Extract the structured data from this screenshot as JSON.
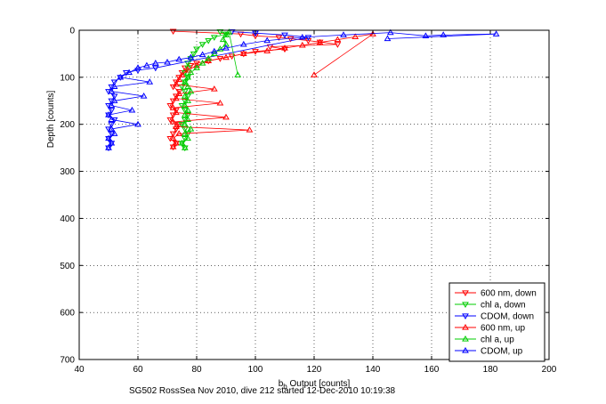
{
  "chart_data": {
    "type": "scatter",
    "caption": "SG502 RossSea Nov 2010, dive 212 started 12-Dec-2010 10:19:38",
    "xlabel": "b_b Output [counts]",
    "ylabel": "Depth [counts]",
    "xlim": [
      40,
      200
    ],
    "ylim": [
      0,
      700
    ],
    "y_reversed": true,
    "grid": "dotted",
    "legend_position": "bottom-right",
    "xticks": [
      "40",
      "60",
      "80",
      "100",
      "120",
      "140",
      "160",
      "180",
      "200"
    ],
    "yticks": [
      "0",
      "100",
      "200",
      "300",
      "400",
      "500",
      "600",
      "700"
    ],
    "series": [
      {
        "name": "600 nm, down",
        "color": "#ff0000",
        "marker": "triangle-down",
        "points": [
          [
            72,
            2
          ],
          [
            95,
            8
          ],
          [
            100,
            12
          ],
          [
            108,
            15
          ],
          [
            112,
            18
          ],
          [
            118,
            22
          ],
          [
            122,
            25
          ],
          [
            128,
            30
          ],
          [
            105,
            35
          ],
          [
            110,
            40
          ],
          [
            100,
            45
          ],
          [
            96,
            50
          ],
          [
            92,
            55
          ],
          [
            88,
            60
          ],
          [
            84,
            65
          ],
          [
            80,
            70
          ],
          [
            78,
            75
          ],
          [
            76,
            80
          ],
          [
            75,
            90
          ],
          [
            74,
            100
          ],
          [
            73,
            110
          ],
          [
            72,
            120
          ],
          [
            74,
            130
          ],
          [
            73,
            140
          ],
          [
            72,
            150
          ],
          [
            71,
            160
          ],
          [
            73,
            170
          ],
          [
            72,
            180
          ],
          [
            71,
            190
          ],
          [
            74,
            200
          ],
          [
            73,
            210
          ],
          [
            72,
            220
          ],
          [
            71,
            230
          ],
          [
            73,
            240
          ],
          [
            72,
            248
          ]
        ]
      },
      {
        "name": "chl a, down",
        "color": "#00cc00",
        "marker": "triangle-down",
        "points": [
          [
            88,
            3
          ],
          [
            90,
            8
          ],
          [
            86,
            15
          ],
          [
            84,
            22
          ],
          [
            82,
            30
          ],
          [
            80,
            40
          ],
          [
            79,
            50
          ],
          [
            78,
            60
          ],
          [
            77,
            70
          ],
          [
            77,
            80
          ],
          [
            76,
            90
          ],
          [
            77,
            100
          ],
          [
            76,
            110
          ],
          [
            75,
            120
          ],
          [
            76,
            130
          ],
          [
            77,
            140
          ],
          [
            76,
            150
          ],
          [
            75,
            160
          ],
          [
            76,
            170
          ],
          [
            77,
            180
          ],
          [
            76,
            190
          ],
          [
            75,
            200
          ],
          [
            76,
            210
          ],
          [
            77,
            220
          ],
          [
            76,
            230
          ],
          [
            75,
            240
          ],
          [
            76,
            250
          ]
        ]
      },
      {
        "name": "CDOM, down",
        "color": "#0000ff",
        "marker": "triangle-down",
        "points": [
          [
            92,
            3
          ],
          [
            100,
            6
          ],
          [
            110,
            10
          ],
          [
            118,
            15
          ],
          [
            66,
            80
          ],
          [
            60,
            85
          ],
          [
            56,
            90
          ],
          [
            54,
            100
          ],
          [
            52,
            110
          ],
          [
            51,
            120
          ],
          [
            50,
            130
          ],
          [
            52,
            140
          ],
          [
            51,
            150
          ],
          [
            50,
            160
          ],
          [
            51,
            170
          ],
          [
            50,
            180
          ],
          [
            52,
            190
          ],
          [
            51,
            200
          ],
          [
            50,
            210
          ],
          [
            51,
            220
          ],
          [
            50,
            230
          ],
          [
            51,
            240
          ],
          [
            50,
            250
          ]
        ]
      },
      {
        "name": "600 nm, up",
        "color": "#ff0000",
        "marker": "triangle-up",
        "points": [
          [
            72,
            248
          ],
          [
            73,
            240
          ],
          [
            72,
            230
          ],
          [
            74,
            220
          ],
          [
            98,
            212
          ],
          [
            73,
            205
          ],
          [
            72,
            195
          ],
          [
            90,
            185
          ],
          [
            73,
            175
          ],
          [
            72,
            165
          ],
          [
            88,
            155
          ],
          [
            73,
            145
          ],
          [
            74,
            135
          ],
          [
            86,
            125
          ],
          [
            73,
            115
          ],
          [
            74,
            105
          ],
          [
            75,
            95
          ],
          [
            77,
            85
          ],
          [
            80,
            75
          ],
          [
            84,
            65
          ],
          [
            90,
            58
          ],
          [
            96,
            50
          ],
          [
            104,
            44
          ],
          [
            110,
            38
          ],
          [
            116,
            32
          ],
          [
            122,
            26
          ],
          [
            128,
            20
          ],
          [
            134,
            14
          ],
          [
            140,
            8
          ],
          [
            120,
            95
          ]
        ]
      },
      {
        "name": "chl a, up",
        "color": "#00cc00",
        "marker": "triangle-up",
        "points": [
          [
            76,
            250
          ],
          [
            75,
            240
          ],
          [
            77,
            230
          ],
          [
            76,
            220
          ],
          [
            78,
            210
          ],
          [
            76,
            200
          ],
          [
            77,
            190
          ],
          [
            76,
            180
          ],
          [
            77,
            170
          ],
          [
            76,
            160
          ],
          [
            77,
            150
          ],
          [
            76,
            140
          ],
          [
            78,
            130
          ],
          [
            77,
            120
          ],
          [
            76,
            110
          ],
          [
            77,
            100
          ],
          [
            78,
            90
          ],
          [
            80,
            80
          ],
          [
            82,
            70
          ],
          [
            84,
            60
          ],
          [
            86,
            50
          ],
          [
            88,
            40
          ],
          [
            90,
            30
          ],
          [
            89,
            20
          ],
          [
            90,
            10
          ],
          [
            91,
            4
          ],
          [
            94,
            95
          ]
        ]
      },
      {
        "name": "CDOM, up",
        "color": "#0000ff",
        "marker": "triangle-up",
        "points": [
          [
            50,
            250
          ],
          [
            51,
            240
          ],
          [
            50,
            230
          ],
          [
            52,
            220
          ],
          [
            51,
            210
          ],
          [
            60,
            200
          ],
          [
            51,
            190
          ],
          [
            50,
            180
          ],
          [
            58,
            170
          ],
          [
            51,
            160
          ],
          [
            52,
            150
          ],
          [
            62,
            140
          ],
          [
            51,
            130
          ],
          [
            52,
            120
          ],
          [
            64,
            110
          ],
          [
            54,
            100
          ],
          [
            57,
            90
          ],
          [
            60,
            80
          ],
          [
            63,
            75
          ],
          [
            66,
            70
          ],
          [
            70,
            68
          ],
          [
            74,
            62
          ],
          [
            78,
            58
          ],
          [
            82,
            52
          ],
          [
            86,
            45
          ],
          [
            90,
            38
          ],
          [
            96,
            30
          ],
          [
            104,
            22
          ],
          [
            116,
            15
          ],
          [
            130,
            10
          ],
          [
            146,
            5
          ],
          [
            158,
            12
          ],
          [
            164,
            10
          ],
          [
            182,
            8
          ],
          [
            145,
            18
          ]
        ]
      }
    ]
  }
}
